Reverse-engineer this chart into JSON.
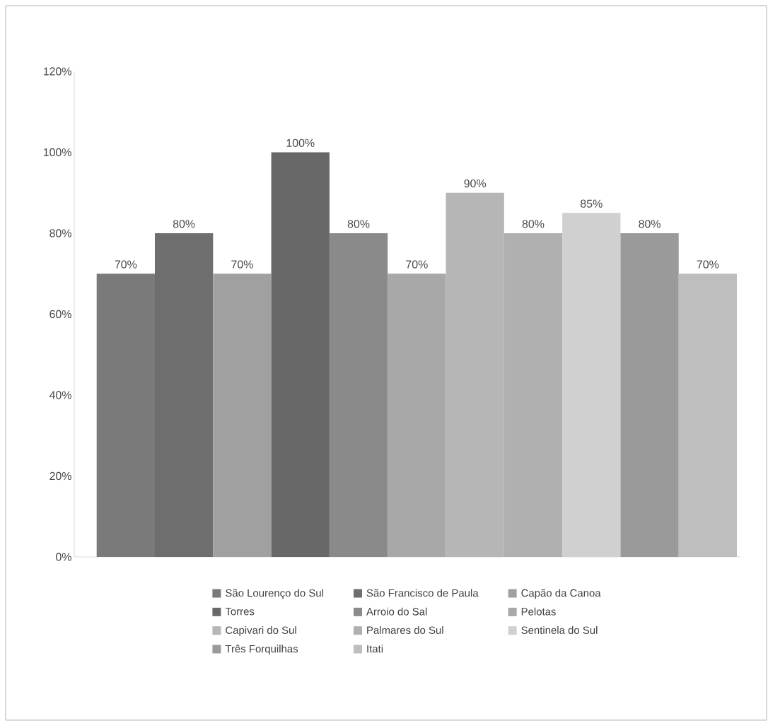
{
  "chart_data": {
    "type": "bar",
    "categories": [
      null
    ],
    "series": [
      {
        "name": "São Lourenço do Sul",
        "color": "#7a7a7a",
        "values": [
          70
        ],
        "value_labels": [
          "70%"
        ]
      },
      {
        "name": "São Francisco de Paula",
        "color": "#6e6e6e",
        "values": [
          80
        ],
        "value_labels": [
          "80%"
        ]
      },
      {
        "name": "Capão da Canoa",
        "color": "#a0a0a0",
        "values": [
          70
        ],
        "value_labels": [
          "70%"
        ]
      },
      {
        "name": "Torres",
        "color": "#686868",
        "values": [
          100
        ],
        "value_labels": [
          "100%"
        ]
      },
      {
        "name": "Arroio do Sal",
        "color": "#8a8a8a",
        "values": [
          80
        ],
        "value_labels": [
          "80%"
        ]
      },
      {
        "name": "Pelotas",
        "color": "#a8a8a8",
        "values": [
          70
        ],
        "value_labels": [
          "70%"
        ]
      },
      {
        "name": "Capivari do Sul",
        "color": "#b6b6b6",
        "values": [
          90
        ],
        "value_labels": [
          "90%"
        ]
      },
      {
        "name": "Palmares do Sul",
        "color": "#b0b0b0",
        "values": [
          80
        ],
        "value_labels": [
          "80%"
        ]
      },
      {
        "name": "Sentinela do Sul",
        "color": "#d0d0d0",
        "values": [
          85
        ],
        "value_labels": [
          "85%"
        ]
      },
      {
        "name": "Três Forquilhas",
        "color": "#9a9a9a",
        "values": [
          80
        ],
        "value_labels": [
          "80%"
        ]
      },
      {
        "name": "Itati",
        "color": "#bebebe",
        "values": [
          70
        ],
        "value_labels": [
          "70%"
        ]
      }
    ],
    "ylim": [
      0,
      120
    ],
    "yticks": [
      {
        "value": 0,
        "label": "0%"
      },
      {
        "value": 20,
        "label": "20%"
      },
      {
        "value": 40,
        "label": "40%"
      },
      {
        "value": 60,
        "label": "60%"
      },
      {
        "value": 80,
        "label": "80%"
      },
      {
        "value": 100,
        "label": "100%"
      },
      {
        "value": 120,
        "label": "120%"
      }
    ],
    "legend": "bottom",
    "tick_labels": "y"
  }
}
